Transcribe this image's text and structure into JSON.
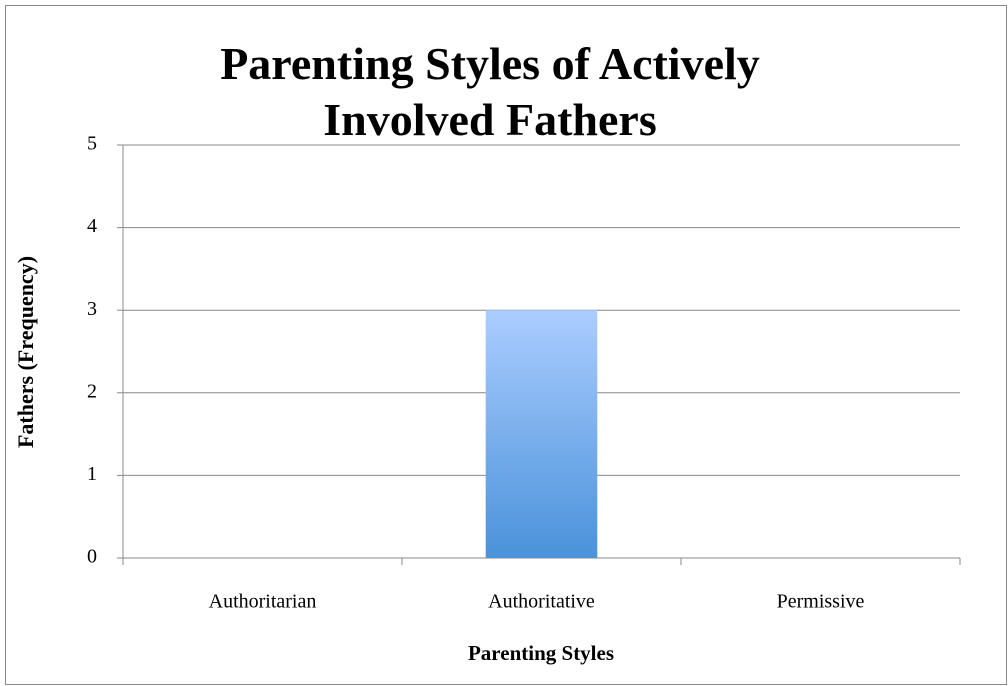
{
  "chart_data": {
    "type": "bar",
    "title": "Parenting Styles of Actively Involved Fathers",
    "categories": [
      "Authoritarian",
      "Authoritative",
      "Permissive"
    ],
    "values": [
      0,
      3,
      0
    ],
    "color": [
      "#abcdff",
      "#4a92da"
    ],
    "x_label": "Parenting Styles",
    "y_label": "Fathers (Frequency)",
    "ylim": [
      0,
      5
    ],
    "yticks": [
      0,
      1,
      2,
      3,
      4,
      5
    ],
    "grid": true
  }
}
